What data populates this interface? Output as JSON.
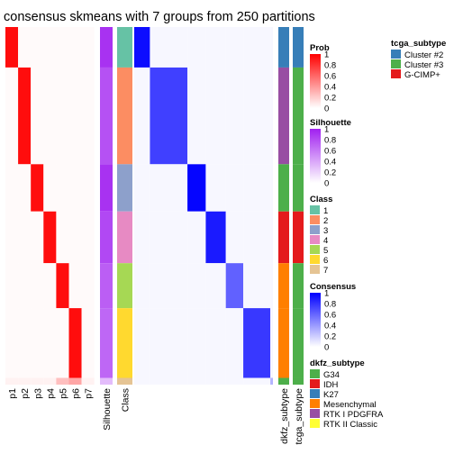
{
  "title": "consensus skmeans with 7 groups from 250 partitions",
  "chart_data": {
    "type": "heatmap",
    "title": "consensus skmeans with 7 groups from 250 partitions",
    "n_groups": 7,
    "n_partitions": 250,
    "prob_columns": [
      "p1",
      "p2",
      "p3",
      "p4",
      "p5",
      "p6",
      "p7"
    ],
    "annotation_columns": [
      "Silhouette",
      "Class",
      "dkfz_subtype",
      "tcga_subtype"
    ],
    "class_order": [
      1,
      2,
      3,
      4,
      5,
      6,
      7
    ],
    "class_sizes": [
      36,
      86,
      42,
      46,
      40,
      62,
      6
    ],
    "class_colors": [
      "#66C2A5",
      "#FC8D62",
      "#8DA0CB",
      "#E78AC3",
      "#A6D854",
      "#FFD92F",
      "#E5C494"
    ],
    "silhouette_by_class": [
      0.92,
      0.78,
      0.92,
      0.82,
      0.72,
      0.68,
      0.3
    ],
    "consensus_within_class": [
      0.95,
      0.75,
      0.98,
      0.9,
      0.62,
      0.78,
      0.3
    ],
    "legends": [
      {
        "title": "Prob",
        "type": "continuous",
        "ticks": [
          "1",
          "0.8",
          "0.6",
          "0.4",
          "0.2",
          "0"
        ],
        "colors": [
          "#FF0000",
          "#FFFFFF"
        ]
      },
      {
        "title": "Silhouette",
        "type": "continuous",
        "ticks": [
          "1",
          "0.8",
          "0.6",
          "0.4",
          "0.2",
          "0"
        ],
        "colors": [
          "#A020F0",
          "#FFFFFF"
        ]
      },
      {
        "title": "Class",
        "type": "discrete",
        "labels": [
          "1",
          "2",
          "3",
          "4",
          "5",
          "6",
          "7"
        ],
        "colors": [
          "#66C2A5",
          "#FC8D62",
          "#8DA0CB",
          "#E78AC3",
          "#A6D854",
          "#FFD92F",
          "#E5C494"
        ]
      },
      {
        "title": "Consensus",
        "type": "continuous",
        "ticks": [
          "1",
          "0.8",
          "0.6",
          "0.4",
          "0.2",
          "0"
        ],
        "colors": [
          "#0000FF",
          "#FFFFFF"
        ]
      },
      {
        "title": "dkfz_subtype",
        "type": "discrete",
        "labels": [
          "G34",
          "IDH",
          "K27",
          "Mesenchymal",
          "RTK I PDGFRA",
          "RTK II Classic"
        ],
        "colors": [
          "#4DAF4A",
          "#E41A1C",
          "#377EB8",
          "#FF7F00",
          "#984EA3",
          "#FFFF33"
        ]
      },
      {
        "title": "tcga_subtype",
        "type": "discrete",
        "labels": [
          "Cluster #2",
          "Cluster #3",
          "G-CIMP+"
        ],
        "colors": [
          "#377EB8",
          "#4DAF4A",
          "#E41A1C"
        ]
      }
    ]
  }
}
